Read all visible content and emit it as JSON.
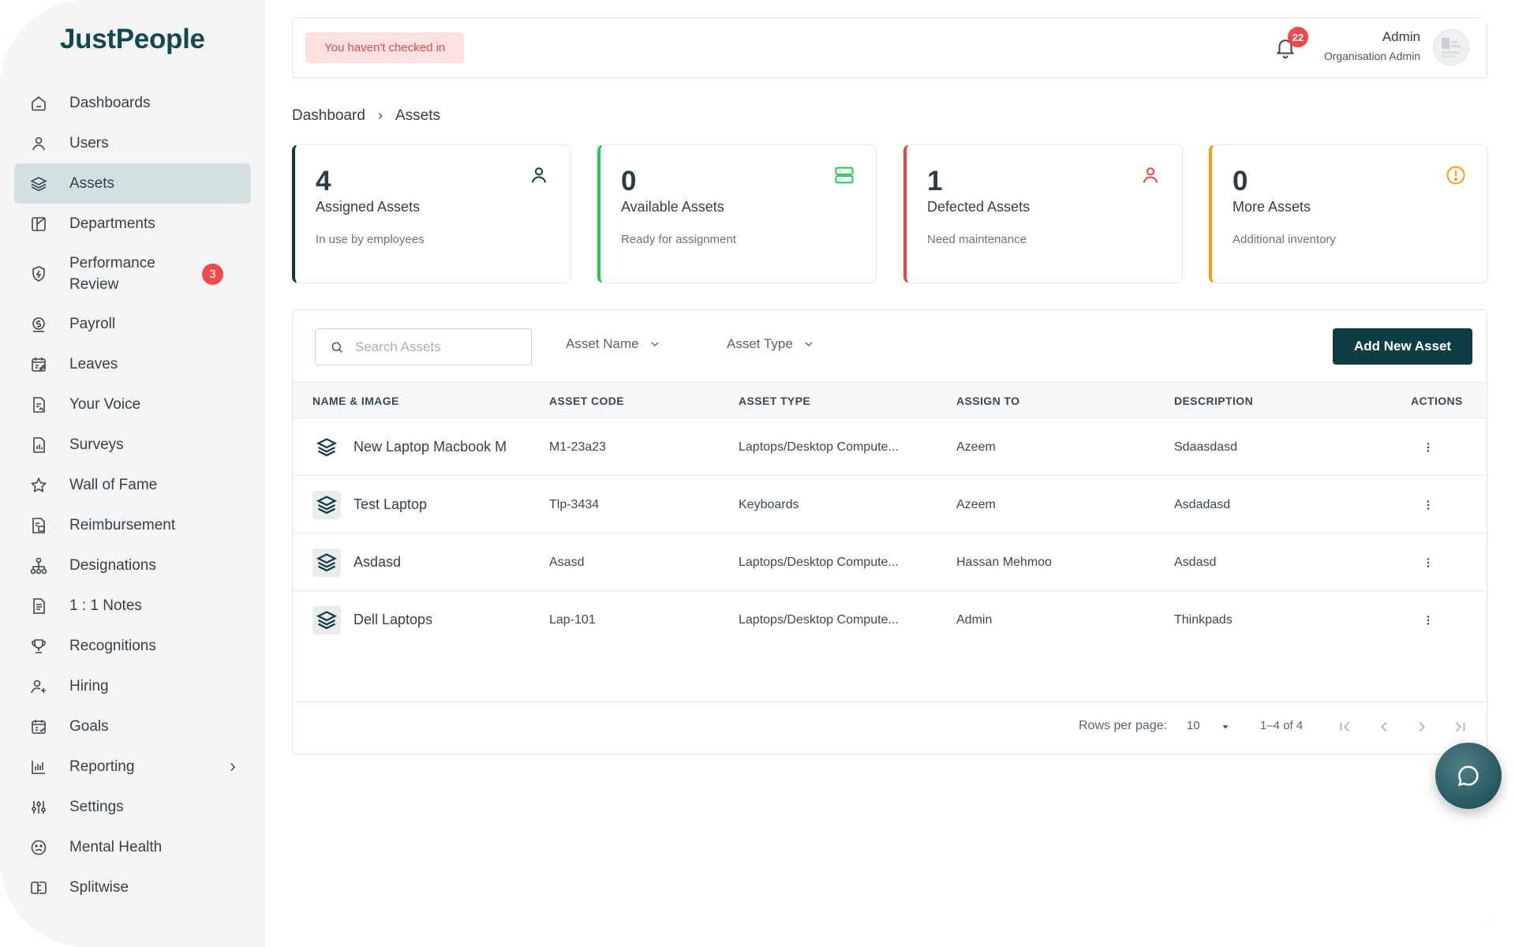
{
  "app": {
    "logo": "JustPeople"
  },
  "sidebar": {
    "items": [
      {
        "label": "Dashboards",
        "icon": "home-icon"
      },
      {
        "label": "Users",
        "icon": "user-icon"
      },
      {
        "label": "Assets",
        "icon": "layers-icon",
        "active": true
      },
      {
        "label": "Departments",
        "icon": "departments-icon"
      },
      {
        "label": "Performance Review",
        "icon": "shield-bolt-icon",
        "badge": "3"
      },
      {
        "label": "Payroll",
        "icon": "payroll-icon"
      },
      {
        "label": "Leaves",
        "icon": "calendar-edit-icon"
      },
      {
        "label": "Your Voice",
        "icon": "doc-voice-icon"
      },
      {
        "label": "Surveys",
        "icon": "doc-chart-icon"
      },
      {
        "label": "Wall of Fame",
        "icon": "star-icon"
      },
      {
        "label": "Reimbursement",
        "icon": "doc-money-icon"
      },
      {
        "label": "Designations",
        "icon": "hierarchy-icon"
      },
      {
        "label": "1 : 1 Notes",
        "icon": "notes-icon"
      },
      {
        "label": "Recognitions",
        "icon": "trophy-icon"
      },
      {
        "label": "Hiring",
        "icon": "user-plus-icon"
      },
      {
        "label": "Goals",
        "icon": "calendar-goal-icon"
      },
      {
        "label": "Reporting",
        "icon": "bar-chart-icon",
        "chevron": true
      },
      {
        "label": "Settings",
        "icon": "sliders-icon"
      },
      {
        "label": "Mental Health",
        "icon": "sad-face-icon"
      },
      {
        "label": "Splitwise",
        "icon": "split-icon"
      }
    ]
  },
  "topbar": {
    "checkin_text": "You haven't checked in",
    "notification_count": "22",
    "user_name": "Admin",
    "user_role": "Organisation Admin"
  },
  "breadcrumb": {
    "root": "Dashboard",
    "current": "Assets"
  },
  "stats": [
    {
      "value": "4",
      "title": "Assigned Assets",
      "subtitle": "In use by employees",
      "color": "#0f3d43",
      "icon": "user-icon"
    },
    {
      "value": "0",
      "title": "Available Assets",
      "subtitle": "Ready for assignment",
      "color": "#22c55e",
      "icon": "server-icon"
    },
    {
      "value": "1",
      "title": "Defected Assets",
      "subtitle": "Need maintenance",
      "color": "#ef4444",
      "icon": "user-icon"
    },
    {
      "value": "0",
      "title": "More Assets",
      "subtitle": "Additional inventory",
      "color": "#f59e0b",
      "icon": "alert-circle-icon"
    }
  ],
  "toolbar": {
    "search_placeholder": "Search Assets",
    "filter_name": "Asset Name",
    "filter_type": "Asset Type",
    "add_label": "Add New Asset"
  },
  "table": {
    "headers": [
      "NAME & IMAGE",
      "ASSET CODE",
      "ASSET TYPE",
      "ASSIGN TO",
      "DESCRIPTION",
      "ACTIONS"
    ],
    "rows": [
      {
        "name": "New Laptop Macbook M",
        "code": "M1-23a23",
        "type": "Laptops/Desktop Compute...",
        "assignee": "Azeem",
        "description": "Sdaasdasd"
      },
      {
        "name": "Test Laptop",
        "code": "Tlp-3434",
        "type": "Keyboards",
        "assignee": "Azeem",
        "description": "Asdadasd"
      },
      {
        "name": "Asdasd",
        "code": "Asasd",
        "type": "Laptops/Desktop Compute...",
        "assignee": "Hassan Mehmoo",
        "description": "Asdasd"
      },
      {
        "name": "Dell Laptops",
        "code": "Lap-101",
        "type": "Laptops/Desktop Compute...",
        "assignee": "Admin",
        "description": "Thinkpads"
      }
    ]
  },
  "pagination": {
    "rows_per_page_label": "Rows per page:",
    "rows_per_page": "10",
    "range": "1–4 of 4"
  },
  "colors": {
    "brand": "#0f3d43",
    "danger": "#ef4a4a",
    "active_nav_bg": "#d5e0e2"
  }
}
